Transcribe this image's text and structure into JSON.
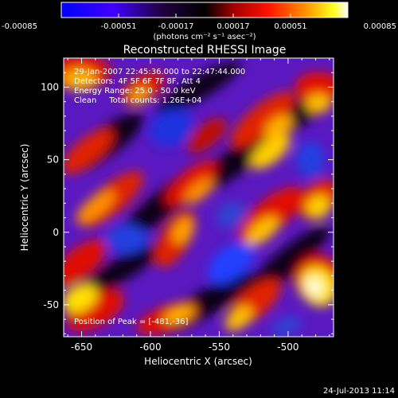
{
  "chart_data": {
    "type": "heatmap",
    "title": "Reconstructed RHESSI Image",
    "xlabel": "Heliocentric X (arcsec)",
    "ylabel": "Heliocentric Y (arcsec)",
    "xlim": [
      -663,
      -467
    ],
    "ylim": [
      -72,
      120
    ],
    "x_ticks": [
      -650,
      -600,
      -550,
      -500
    ],
    "x_tick_labels": [
      "-650",
      "-600",
      "-550",
      "-500"
    ],
    "y_ticks": [
      -50,
      0,
      50,
      100
    ],
    "y_tick_labels": [
      "-50",
      "0",
      "50",
      "100"
    ],
    "colorbar": {
      "min": -0.00085,
      "max": 0.00085,
      "ticks": [
        -0.00085,
        -0.00051,
        -0.00017,
        0.00017,
        0.00051,
        0.00085
      ],
      "tick_labels": [
        "-0.00085",
        "-0.00051",
        "-0.00017",
        "0.00017",
        "0.00051",
        "0.00085"
      ],
      "unit_label": "(photons cm⁻² s⁻¹ asec⁻²)",
      "colors": [
        "#0000ff",
        "#5a00e0",
        "#1a0030",
        "#000000",
        "#a00000",
        "#ff0000",
        "#ff8000",
        "#ffff00",
        "#ffffff"
      ]
    },
    "annotations": [
      "29-Jan-2007 22:45:36.000 to 22:47:44.000",
      "Detectors: 4F 5F 6F 7F 8F, Att 4",
      "Energy Range: 25.0 - 50.0 keV",
      "Clean     Total counts: 1.26E+04"
    ],
    "peak_label": "Position of Peak = [-481,-36]",
    "peak": [
      -481,
      -36
    ]
  },
  "footer": {
    "timestamp": "24-Jul-2013 11:14"
  }
}
